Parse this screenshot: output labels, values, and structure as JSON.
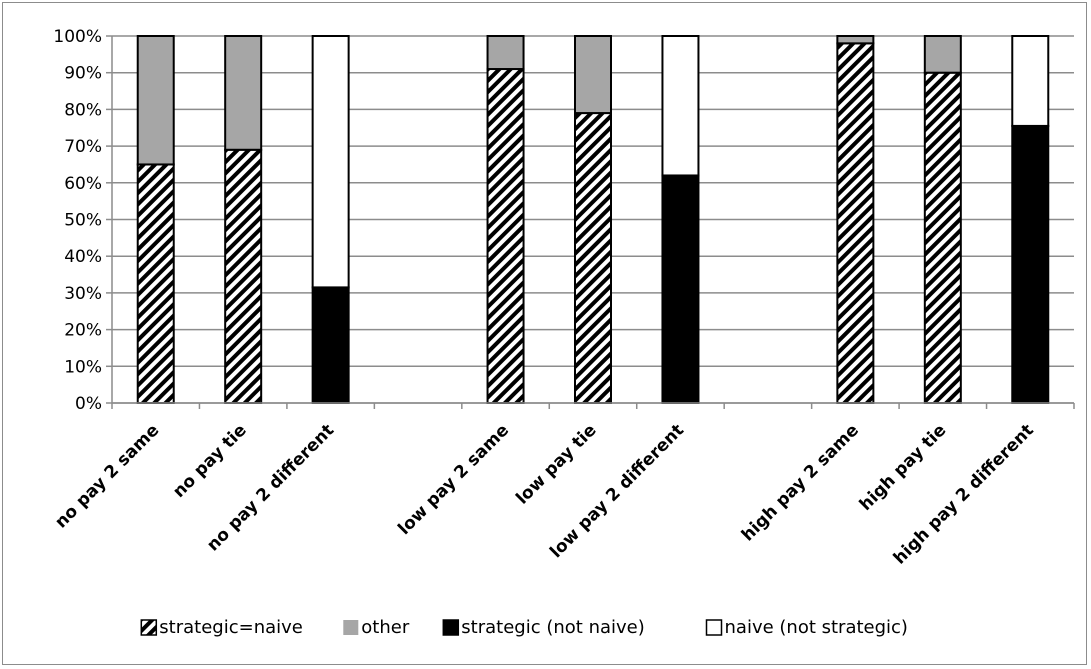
{
  "chart_data": {
    "type": "bar",
    "stacked": true,
    "percent_stacked": true,
    "categories": [
      "no pay 2 same",
      "no pay tie",
      "no pay 2 different",
      "",
      "low pay 2 same",
      "low pay tie",
      "low pay 2 different",
      "",
      "high pay 2 same",
      "high pay tie",
      "high pay 2 different"
    ],
    "series": [
      {
        "name": "strategic=naive",
        "fill": "hatch",
        "color": "#000000",
        "values": [
          65,
          69,
          0,
          null,
          91,
          79,
          0,
          null,
          98,
          90,
          0
        ]
      },
      {
        "name": "other",
        "fill": "solid",
        "color": "#a6a6a6",
        "values": [
          35,
          31,
          0,
          null,
          9,
          21,
          0,
          null,
          2,
          10,
          0
        ]
      },
      {
        "name": "strategic (not naive)",
        "fill": "solid",
        "color": "#000000",
        "values": [
          0,
          0,
          31.5,
          null,
          0,
          0,
          62,
          null,
          0,
          0,
          75.5
        ]
      },
      {
        "name": "naive (not strategic)",
        "fill": "solid",
        "color": "#ffffff",
        "values": [
          0,
          0,
          68.5,
          null,
          0,
          0,
          38,
          null,
          0,
          0,
          24.5
        ]
      }
    ],
    "y_ticks": [
      "0%",
      "10%",
      "20%",
      "30%",
      "40%",
      "50%",
      "60%",
      "70%",
      "80%",
      "90%",
      "100%"
    ],
    "ylim": [
      0,
      100
    ],
    "grid": true,
    "legend_position": "bottom"
  }
}
